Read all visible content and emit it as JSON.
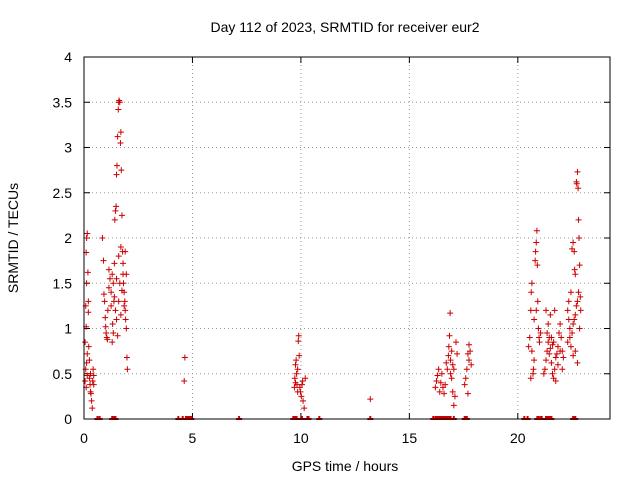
{
  "chart_data": {
    "type": "scatter",
    "title": "Day 112 of 2023, SRMTID for receiver eur2",
    "xlabel": "GPS time / hours",
    "ylabel": "SRMTID / TECUs",
    "xlim": [
      0,
      24.25
    ],
    "ylim": [
      0,
      4
    ],
    "xticks": [
      0,
      5,
      10,
      15,
      20
    ],
    "yticks": [
      0,
      0.5,
      1,
      1.5,
      2,
      2.5,
      3,
      3.5,
      4
    ],
    "ytick_labels": [
      "0",
      "0.5",
      "1",
      "1.5",
      "2",
      "2.5",
      "3",
      "3.5",
      "4"
    ],
    "grid": true,
    "marker": "+",
    "color": "#cc0000",
    "series": [
      {
        "name": "SRMTID",
        "points": [
          [
            0.05,
            0.42
          ],
          [
            0.08,
            0.55
          ],
          [
            0.1,
            0.35
          ],
          [
            0.12,
            0.62
          ],
          [
            0.15,
            0.48
          ],
          [
            0.1,
            1.02
          ],
          [
            0.12,
            1.5
          ],
          [
            0.1,
            1.84
          ],
          [
            0.12,
            2.0
          ],
          [
            0.15,
            2.05
          ],
          [
            0.18,
            1.62
          ],
          [
            0.2,
            1.3
          ],
          [
            0.22,
            0.8
          ],
          [
            0.25,
            0.45
          ],
          [
            0.28,
            0.38
          ],
          [
            0.3,
            0.5
          ],
          [
            0.32,
            0.28
          ],
          [
            0.35,
            0.2
          ],
          [
            0.38,
            0.12
          ],
          [
            0.4,
            0.42
          ],
          [
            0.42,
            0.55
          ],
          [
            0.45,
            0.48
          ],
          [
            0.15,
            0.72
          ],
          [
            0.2,
            1.18
          ],
          [
            0.05,
            0.85
          ],
          [
            0.25,
            0.65
          ],
          [
            0.3,
            0.3
          ],
          [
            0.45,
            0.38
          ],
          [
            0.08,
            1.25
          ],
          [
            0.85,
            2.0
          ],
          [
            0.9,
            1.75
          ],
          [
            0.92,
            1.38
          ],
          [
            0.95,
            1.3
          ],
          [
            0.98,
            1.12
          ],
          [
            1.0,
            1.02
          ],
          [
            1.02,
            0.95
          ],
          [
            1.05,
            0.9
          ],
          [
            1.08,
            0.88
          ],
          [
            1.1,
            1.2
          ],
          [
            1.15,
            1.45
          ],
          [
            1.2,
            1.55
          ],
          [
            1.25,
            1.25
          ],
          [
            1.3,
            1.6
          ],
          [
            1.32,
            1.05
          ],
          [
            1.35,
            0.95
          ],
          [
            1.38,
            1.3
          ],
          [
            1.4,
            1.72
          ],
          [
            1.42,
            2.2
          ],
          [
            1.45,
            2.3
          ],
          [
            1.48,
            2.35
          ],
          [
            1.5,
            2.7
          ],
          [
            1.52,
            2.8
          ],
          [
            1.55,
            3.12
          ],
          [
            1.58,
            3.42
          ],
          [
            1.6,
            3.5
          ],
          [
            1.62,
            3.52
          ],
          [
            1.65,
            3.5
          ],
          [
            1.68,
            3.05
          ],
          [
            1.7,
            3.17
          ],
          [
            1.72,
            2.75
          ],
          [
            1.75,
            2.25
          ],
          [
            1.78,
            1.85
          ],
          [
            1.8,
            1.6
          ],
          [
            1.82,
            1.5
          ],
          [
            1.85,
            1.4
          ],
          [
            1.88,
            1.3
          ],
          [
            1.9,
            1.2
          ],
          [
            1.92,
            1.1
          ],
          [
            1.95,
            1.0
          ],
          [
            1.98,
            0.68
          ],
          [
            2.0,
            0.55
          ],
          [
            1.4,
            1.35
          ],
          [
            1.45,
            1.2
          ],
          [
            1.5,
            1.1
          ],
          [
            1.55,
            0.92
          ],
          [
            1.6,
            1.8
          ],
          [
            1.65,
            1.5
          ],
          [
            1.7,
            1.9
          ],
          [
            1.75,
            1.42
          ],
          [
            1.8,
            1.72
          ],
          [
            1.85,
            1.25
          ],
          [
            1.9,
            1.85
          ],
          [
            1.95,
            1.6
          ],
          [
            1.35,
            1.5
          ],
          [
            1.25,
            1.4
          ],
          [
            1.3,
            0.85
          ],
          [
            1.15,
            1.65
          ],
          [
            1.6,
            1.3
          ],
          [
            1.7,
            1.15
          ],
          [
            1.5,
            1.55
          ],
          [
            4.65,
            0.68
          ],
          [
            4.62,
            0.42
          ],
          [
            9.7,
            0.35
          ],
          [
            9.72,
            0.45
          ],
          [
            9.75,
            0.6
          ],
          [
            9.78,
            0.65
          ],
          [
            9.8,
            0.5
          ],
          [
            9.82,
            0.38
          ],
          [
            9.85,
            0.55
          ],
          [
            9.88,
            0.86
          ],
          [
            9.9,
            0.92
          ],
          [
            9.92,
            0.7
          ],
          [
            9.95,
            0.35
          ],
          [
            9.98,
            0.3
          ],
          [
            10.02,
            0.25
          ],
          [
            10.05,
            0.38
          ],
          [
            10.08,
            0.42
          ],
          [
            10.1,
            0.2
          ],
          [
            10.15,
            0.12
          ],
          [
            10.2,
            0.45
          ],
          [
            9.75,
            0.4
          ],
          [
            9.85,
            0.3
          ],
          [
            13.2,
            0.22
          ],
          [
            16.2,
            0.35
          ],
          [
            16.25,
            0.42
          ],
          [
            16.3,
            0.48
          ],
          [
            16.35,
            0.55
          ],
          [
            16.4,
            0.3
          ],
          [
            16.45,
            0.4
          ],
          [
            16.5,
            0.5
          ],
          [
            16.55,
            0.35
          ],
          [
            16.6,
            0.28
          ],
          [
            16.65,
            0.38
          ],
          [
            16.7,
            0.62
          ],
          [
            16.75,
            0.55
          ],
          [
            16.8,
            0.7
          ],
          [
            16.82,
            0.8
          ],
          [
            16.85,
            0.92
          ],
          [
            16.88,
            1.17
          ],
          [
            16.9,
            0.5
          ],
          [
            16.95,
            0.45
          ],
          [
            17.0,
            0.3
          ],
          [
            17.05,
            0.15
          ],
          [
            17.1,
            0.25
          ],
          [
            17.15,
            0.85
          ],
          [
            17.2,
            0.72
          ],
          [
            16.9,
            0.65
          ],
          [
            17.0,
            0.6
          ],
          [
            17.05,
            0.55
          ],
          [
            16.95,
            0.75
          ],
          [
            17.55,
            0.38
          ],
          [
            17.6,
            0.45
          ],
          [
            17.65,
            0.55
          ],
          [
            17.7,
            0.72
          ],
          [
            17.75,
            0.82
          ],
          [
            17.8,
            0.75
          ],
          [
            17.85,
            0.6
          ],
          [
            17.7,
            0.28
          ],
          [
            17.75,
            0.65
          ],
          [
            20.5,
            0.8
          ],
          [
            20.55,
            0.9
          ],
          [
            20.6,
            1.2
          ],
          [
            20.62,
            1.4
          ],
          [
            20.65,
            1.5
          ],
          [
            20.7,
            0.5
          ],
          [
            20.72,
            0.55
          ],
          [
            20.75,
            0.65
          ],
          [
            20.8,
            1.75
          ],
          [
            20.82,
            1.85
          ],
          [
            20.85,
            1.95
          ],
          [
            20.88,
            2.08
          ],
          [
            20.9,
            1.7
          ],
          [
            20.92,
            1.3
          ],
          [
            20.95,
            1.0
          ],
          [
            20.98,
            0.9
          ],
          [
            21.0,
            0.85
          ],
          [
            21.05,
            0.95
          ],
          [
            20.6,
            0.45
          ],
          [
            20.65,
            0.75
          ],
          [
            20.75,
            1.1
          ],
          [
            20.85,
            1.2
          ],
          [
            21.2,
            0.5
          ],
          [
            21.25,
            0.55
          ],
          [
            21.3,
            0.65
          ],
          [
            21.35,
            0.75
          ],
          [
            21.4,
            0.85
          ],
          [
            21.45,
            0.9
          ],
          [
            21.5,
            0.78
          ],
          [
            21.55,
            0.62
          ],
          [
            21.6,
            0.5
          ],
          [
            21.65,
            0.45
          ],
          [
            21.7,
            0.55
          ],
          [
            21.75,
            0.68
          ],
          [
            21.8,
            0.72
          ],
          [
            21.85,
            0.8
          ],
          [
            21.9,
            0.95
          ],
          [
            21.95,
            1.05
          ],
          [
            22.0,
            0.9
          ],
          [
            22.05,
            0.75
          ],
          [
            22.1,
            0.68
          ],
          [
            21.3,
            1.2
          ],
          [
            21.4,
            1.05
          ],
          [
            21.5,
            1.15
          ],
          [
            21.55,
            0.9
          ],
          [
            21.65,
            0.85
          ],
          [
            21.7,
            1.2
          ],
          [
            21.85,
            0.6
          ],
          [
            21.95,
            0.75
          ],
          [
            22.05,
            0.55
          ],
          [
            21.35,
            0.95
          ],
          [
            21.45,
            0.72
          ],
          [
            21.6,
            0.82
          ],
          [
            21.75,
            0.42
          ],
          [
            22.3,
            1.2
          ],
          [
            22.35,
            1.3
          ],
          [
            22.4,
            1.0
          ],
          [
            22.45,
            1.4
          ],
          [
            22.5,
            1.88
          ],
          [
            22.55,
            1.95
          ],
          [
            22.6,
            1.85
          ],
          [
            22.62,
            1.65
          ],
          [
            22.65,
            1.6
          ],
          [
            22.7,
            2.62
          ],
          [
            22.72,
            2.6
          ],
          [
            22.75,
            2.73
          ],
          [
            22.78,
            2.55
          ],
          [
            22.8,
            2.2
          ],
          [
            22.82,
            2.0
          ],
          [
            22.85,
            1.7
          ],
          [
            22.88,
            1.35
          ],
          [
            22.9,
            1.2
          ],
          [
            22.4,
            0.9
          ],
          [
            22.5,
            0.95
          ],
          [
            22.55,
            1.05
          ],
          [
            22.6,
            1.1
          ],
          [
            22.65,
            1.15
          ],
          [
            22.7,
            1.25
          ],
          [
            22.75,
            1.3
          ],
          [
            22.8,
            1.4
          ],
          [
            22.45,
            0.8
          ],
          [
            22.55,
            0.7
          ],
          [
            22.65,
            0.75
          ],
          [
            22.75,
            0.62
          ],
          [
            22.35,
            1.1
          ],
          [
            22.85,
            1.0
          ],
          [
            22.3,
            0.85
          ]
        ]
      }
    ],
    "zero_band_x": [
      0.62,
      0.72,
      1.3,
      1.35,
      1.4,
      1.45,
      4.35,
      4.55,
      4.7,
      4.75,
      4.8,
      4.85,
      4.9,
      4.95,
      7.15,
      9.65,
      9.7,
      9.75,
      9.8,
      10.05,
      10.3,
      10.35,
      10.85,
      13.2,
      16.1,
      16.2,
      16.25,
      16.3,
      16.35,
      16.4,
      16.45,
      16.5,
      16.55,
      16.6,
      16.65,
      16.7,
      16.75,
      16.8,
      16.85,
      16.9,
      17.05,
      17.55,
      17.6,
      17.65,
      20.3,
      20.45,
      20.9,
      20.95,
      21.05,
      21.1,
      21.3,
      21.35,
      21.4,
      21.45,
      21.5,
      21.55,
      22.55,
      22.6,
      22.65
    ]
  }
}
